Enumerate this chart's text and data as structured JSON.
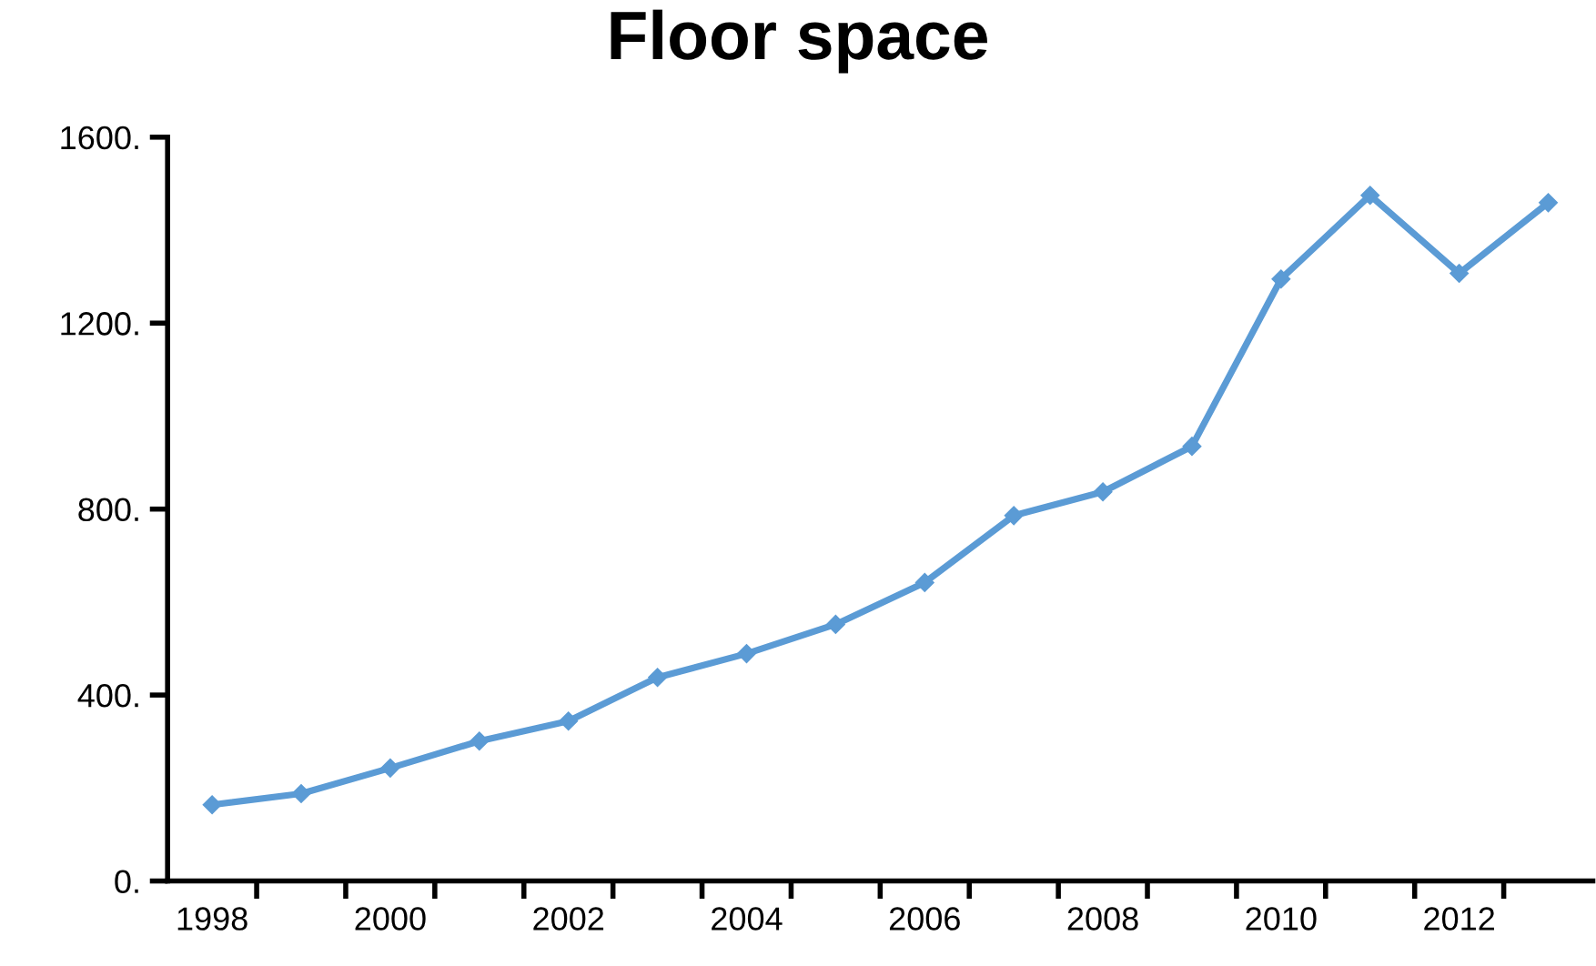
{
  "chart_data": {
    "type": "line",
    "title": "Floor space",
    "categories": [
      "1998",
      null,
      "2000",
      null,
      "2002",
      null,
      "2004",
      null,
      "2006",
      null,
      "2008",
      null,
      "2010",
      null,
      "2012",
      null
    ],
    "series": [
      {
        "color": "#5b9bd5",
        "values": [
          164,
          188,
          243,
          301,
          344,
          438,
          489,
          552,
          642,
          786,
          837,
          935,
          1295,
          1475,
          1307,
          1459
        ]
      }
    ],
    "ylim": [
      0,
      1600
    ],
    "yticks": [
      {
        "value": 0,
        "label": "0."
      },
      {
        "value": 400,
        "label": "400."
      },
      {
        "value": 800,
        "label": "800."
      },
      {
        "value": 1200,
        "label": "1200."
      },
      {
        "value": 1600,
        "label": "1600."
      }
    ],
    "grid": false,
    "marker": "diamond",
    "line_style": "solid"
  }
}
